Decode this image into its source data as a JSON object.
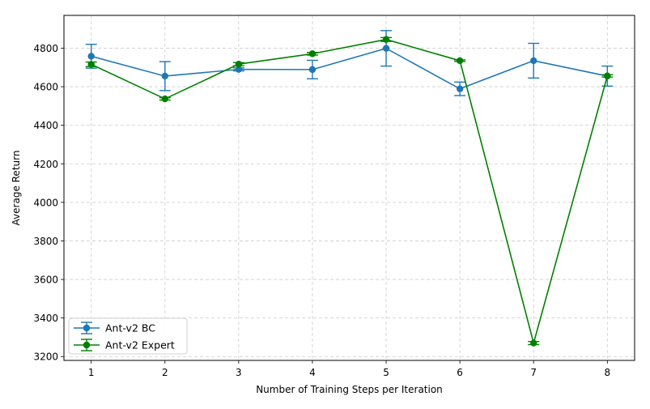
{
  "chart_data": {
    "type": "line",
    "xlabel": "Number of Training Steps per Iteration",
    "ylabel": "Average Return",
    "x": [
      1,
      2,
      3,
      4,
      5,
      6,
      7,
      8
    ],
    "xlim": [
      0.63,
      8.37
    ],
    "ylim": [
      3180,
      4970
    ],
    "xticks": [
      1,
      2,
      3,
      4,
      5,
      6,
      7,
      8
    ],
    "yticks": [
      3200,
      3400,
      3600,
      3800,
      4000,
      4200,
      4400,
      4600,
      4800
    ],
    "grid": true,
    "legend_position": "lower-left",
    "series": [
      {
        "name": "Ant-v2 BC",
        "color": "#1f77b4",
        "values": [
          4758,
          4655,
          4690,
          4689,
          4799,
          4589,
          4735,
          4655
        ],
        "errors": [
          62,
          75,
          8,
          48,
          92,
          35,
          90,
          52
        ]
      },
      {
        "name": "Ant-v2 Expert",
        "color": "#008000",
        "values": [
          4716,
          4537,
          4717,
          4771,
          4845,
          4735,
          3270,
          4656
        ],
        "errors": [
          12,
          6,
          8,
          7,
          10,
          4,
          8,
          6
        ]
      }
    ]
  }
}
